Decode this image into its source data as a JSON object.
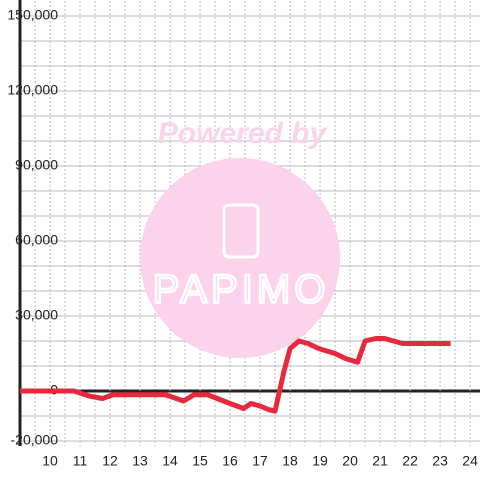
{
  "chart_data": {
    "type": "line",
    "watermark": {
      "title": "Powered by",
      "brand": "PAPIMO"
    },
    "x": [
      9.0,
      10.8,
      11.3,
      11.75,
      12.1,
      13.85,
      14.45,
      14.8,
      15.25,
      16.0,
      16.45,
      16.7,
      17.0,
      17.3,
      17.5,
      17.8,
      18.0,
      18.3,
      18.6,
      18.95,
      19.5,
      19.85,
      20.25,
      20.5,
      20.85,
      21.15,
      21.75,
      23.35
    ],
    "series": [
      {
        "name": "",
        "color": "#e8283c",
        "values": [
          0,
          0,
          -2000,
          -3000,
          -1500,
          -1500,
          -4000,
          -1500,
          -1500,
          -5000,
          -7000,
          -5000,
          -6000,
          -7500,
          -8000,
          8000,
          17000,
          20000,
          19000,
          17000,
          15000,
          13000,
          11500,
          20000,
          21000,
          21000,
          19000,
          19000
        ]
      }
    ],
    "xlim": [
      9.0,
      24.33
    ],
    "xticks": [
      10,
      11,
      12,
      13,
      14,
      15,
      16,
      17,
      18,
      19,
      20,
      21,
      22,
      23,
      24
    ],
    "x_minor_ticks": [
      9.5,
      10.5,
      11.5,
      12.5,
      13.5,
      14.5,
      15.5,
      16.5,
      17.5,
      18.5,
      19.5,
      20.5,
      21.5,
      22.5,
      23.5
    ],
    "ylim": [
      -22000,
      156000
    ],
    "yticks": [
      {
        "value": -20000,
        "label": "-20,000"
      },
      0,
      {
        "value": 30000,
        "label": "30,000"
      },
      {
        "value": 60000,
        "label": "60,000"
      },
      {
        "value": 90000,
        "label": "90,000"
      },
      {
        "value": 120000,
        "label": "120,000"
      },
      {
        "value": 150000,
        "label": "150,000"
      }
    ],
    "y_minor_ticks": [
      -10000,
      10000,
      20000,
      40000,
      50000,
      70000,
      80000,
      100000,
      110000,
      130000,
      140000
    ],
    "grid": true
  }
}
